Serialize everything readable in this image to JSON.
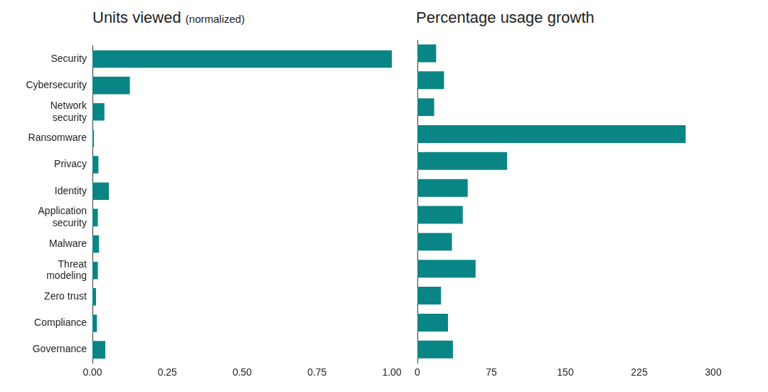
{
  "chart_data": [
    {
      "type": "bar",
      "orientation": "horizontal",
      "title": "Units viewed (normalized)",
      "categories": [
        "Security",
        "Cybersecurity",
        "Network security",
        "Ransomware",
        "Privacy",
        "Identity",
        "Application security",
        "Malware",
        "Threat modeling",
        "Zero trust",
        "Compliance",
        "Governance"
      ],
      "values": [
        1.0,
        0.125,
        0.04,
        0.005,
        0.02,
        0.055,
        0.018,
        0.022,
        0.018,
        0.012,
        0.015,
        0.043
      ],
      "color": "#0a8585",
      "xlim": [
        0,
        1
      ],
      "xticks": [
        {
          "value": 0,
          "label": "0.00"
        },
        {
          "value": 0.25,
          "label": "0.25"
        },
        {
          "value": 0.5,
          "label": "0.50"
        },
        {
          "value": 0.75,
          "label": "0.75"
        },
        {
          "value": 1,
          "label": "1.00"
        }
      ],
      "grid": false
    },
    {
      "type": "bar",
      "orientation": "horizontal",
      "title": "Percentage usage growth",
      "categories": [
        "Security",
        "Cybersecurity",
        "Network security",
        "Ransomware",
        "Privacy",
        "Identity",
        "Application security",
        "Malware",
        "Threat modeling",
        "Zero trust",
        "Compliance",
        "Governance"
      ],
      "values": [
        19,
        27,
        17,
        272,
        91,
        51,
        46,
        35,
        59,
        24,
        31,
        36
      ],
      "color": "#0a8585",
      "xlim": [
        0,
        300
      ],
      "xticks": [
        0,
        75,
        150,
        225,
        300
      ],
      "grid": false,
      "tick_labels": "x"
    }
  ]
}
